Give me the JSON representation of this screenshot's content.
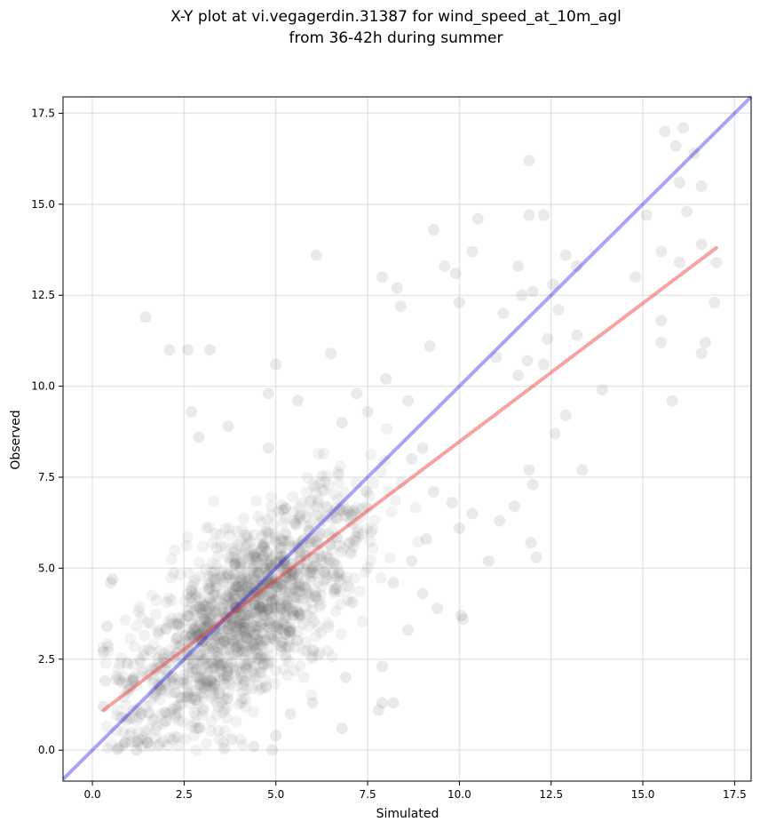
{
  "chart_data": {
    "type": "scatter",
    "title_lines": [
      "X-Y plot at vi.vegagerdin.31387 for wind_speed_at_10m_agl",
      "from 36-42h during summer"
    ],
    "xlabel": "Simulated",
    "ylabel": "Observed",
    "xlim": [
      -0.8,
      17.95
    ],
    "ylim": [
      -0.85,
      17.95
    ],
    "xticks": [
      0.0,
      2.5,
      5.0,
      7.5,
      10.0,
      12.5,
      15.0,
      17.5
    ],
    "xtick_labels": [
      "0.0",
      "2.5",
      "5.0",
      "7.5",
      "10.0",
      "12.5",
      "15.0",
      "17.5"
    ],
    "yticks": [
      0.0,
      2.5,
      5.0,
      7.5,
      10.0,
      12.5,
      15.0,
      17.5
    ],
    "ytick_labels": [
      "0.0",
      "2.5",
      "5.0",
      "7.5",
      "10.0",
      "12.5",
      "15.0",
      "17.5"
    ],
    "grid": true,
    "point_color": "#555555",
    "identity_line": {
      "color": "#0000ee",
      "from": [
        -0.8,
        -0.8
      ],
      "to": [
        17.95,
        17.95
      ]
    },
    "fit_line": {
      "color": "#ee3333",
      "from": [
        0.3,
        1.1
      ],
      "to": [
        17.0,
        13.8
      ]
    },
    "points": [
      [
        1.45,
        11.9
      ],
      [
        2.1,
        11.0
      ],
      [
        2.6,
        11.0
      ],
      [
        3.2,
        11.0
      ],
      [
        6.1,
        13.6
      ],
      [
        9.3,
        14.3
      ],
      [
        10.5,
        14.6
      ],
      [
        11.9,
        16.2
      ],
      [
        11.9,
        14.7
      ],
      [
        12.3,
        14.7
      ],
      [
        15.6,
        17.0
      ],
      [
        15.9,
        16.6
      ],
      [
        16.1,
        17.1
      ],
      [
        16.4,
        16.4
      ],
      [
        16.0,
        15.6
      ],
      [
        16.2,
        14.8
      ],
      [
        16.6,
        15.5
      ],
      [
        15.1,
        14.7
      ],
      [
        15.5,
        13.7
      ],
      [
        16.0,
        13.4
      ],
      [
        16.6,
        13.9
      ],
      [
        17.0,
        13.4
      ],
      [
        16.95,
        12.3
      ],
      [
        15.5,
        11.2
      ],
      [
        15.5,
        11.8
      ],
      [
        15.8,
        9.6
      ],
      [
        16.7,
        11.2
      ],
      [
        16.6,
        10.9
      ],
      [
        14.8,
        13.0
      ],
      [
        13.9,
        9.9
      ],
      [
        13.35,
        7.7
      ],
      [
        12.1,
        5.3
      ],
      [
        11.95,
        5.7
      ],
      [
        10.8,
        5.2
      ],
      [
        10.1,
        3.6
      ],
      [
        10.05,
        3.7
      ],
      [
        8.2,
        1.3
      ],
      [
        7.8,
        1.1
      ],
      [
        7.9,
        1.3
      ],
      [
        6.8,
        0.6
      ],
      [
        4.9,
        0.0
      ],
      [
        4.4,
        0.1
      ],
      [
        3.6,
        0.05
      ],
      [
        1.2,
        0.0
      ],
      [
        0.9,
        0.2
      ],
      [
        0.5,
        4.6
      ],
      [
        0.55,
        4.7
      ],
      [
        0.3,
        2.7
      ],
      [
        0.4,
        3.4
      ],
      [
        0.35,
        1.9
      ],
      [
        7.9,
        13.0
      ],
      [
        8.3,
        12.7
      ],
      [
        8.4,
        12.2
      ],
      [
        9.2,
        11.1
      ],
      [
        9.6,
        13.3
      ],
      [
        9.9,
        13.1
      ],
      [
        10.35,
        13.7
      ],
      [
        10.0,
        12.3
      ],
      [
        11.2,
        12.0
      ],
      [
        11.6,
        13.3
      ],
      [
        11.7,
        12.5
      ],
      [
        12.0,
        12.6
      ],
      [
        12.55,
        12.8
      ],
      [
        12.9,
        13.6
      ],
      [
        13.2,
        13.3
      ],
      [
        12.7,
        12.1
      ],
      [
        13.2,
        11.4
      ],
      [
        12.4,
        11.3
      ],
      [
        11.0,
        10.8
      ],
      [
        11.6,
        10.3
      ],
      [
        11.85,
        10.7
      ],
      [
        12.3,
        10.6
      ],
      [
        12.9,
        9.2
      ],
      [
        12.6,
        8.7
      ],
      [
        11.9,
        7.7
      ],
      [
        12.0,
        7.3
      ],
      [
        11.5,
        6.7
      ],
      [
        11.1,
        6.3
      ],
      [
        10.35,
        6.5
      ],
      [
        10.0,
        6.1
      ],
      [
        9.0,
        8.3
      ],
      [
        8.6,
        9.6
      ],
      [
        8.0,
        10.2
      ],
      [
        7.2,
        9.8
      ],
      [
        6.5,
        10.9
      ],
      [
        5.0,
        10.6
      ],
      [
        4.8,
        9.8
      ],
      [
        2.7,
        9.3
      ],
      [
        2.9,
        8.6
      ],
      [
        3.7,
        8.9
      ],
      [
        4.8,
        8.3
      ],
      [
        5.6,
        9.6
      ],
      [
        6.8,
        9.0
      ],
      [
        7.5,
        9.3
      ],
      [
        8.7,
        8.0
      ],
      [
        9.3,
        7.1
      ],
      [
        9.8,
        6.8
      ],
      [
        9.1,
        5.8
      ],
      [
        8.7,
        5.2
      ],
      [
        8.2,
        4.6
      ],
      [
        9.0,
        4.3
      ],
      [
        9.4,
        3.9
      ],
      [
        8.6,
        3.3
      ],
      [
        7.9,
        2.3
      ],
      [
        6.9,
        2.0
      ],
      [
        6.0,
        1.3
      ],
      [
        5.4,
        1.0
      ],
      [
        5.0,
        0.4
      ],
      [
        3.8,
        0.3
      ],
      [
        2.9,
        0.6
      ],
      [
        2.0,
        0.8
      ],
      [
        1.5,
        0.2
      ],
      [
        0.8,
        0.9
      ],
      [
        0.3,
        1.2
      ],
      [
        1.1,
        1.9
      ]
    ]
  }
}
